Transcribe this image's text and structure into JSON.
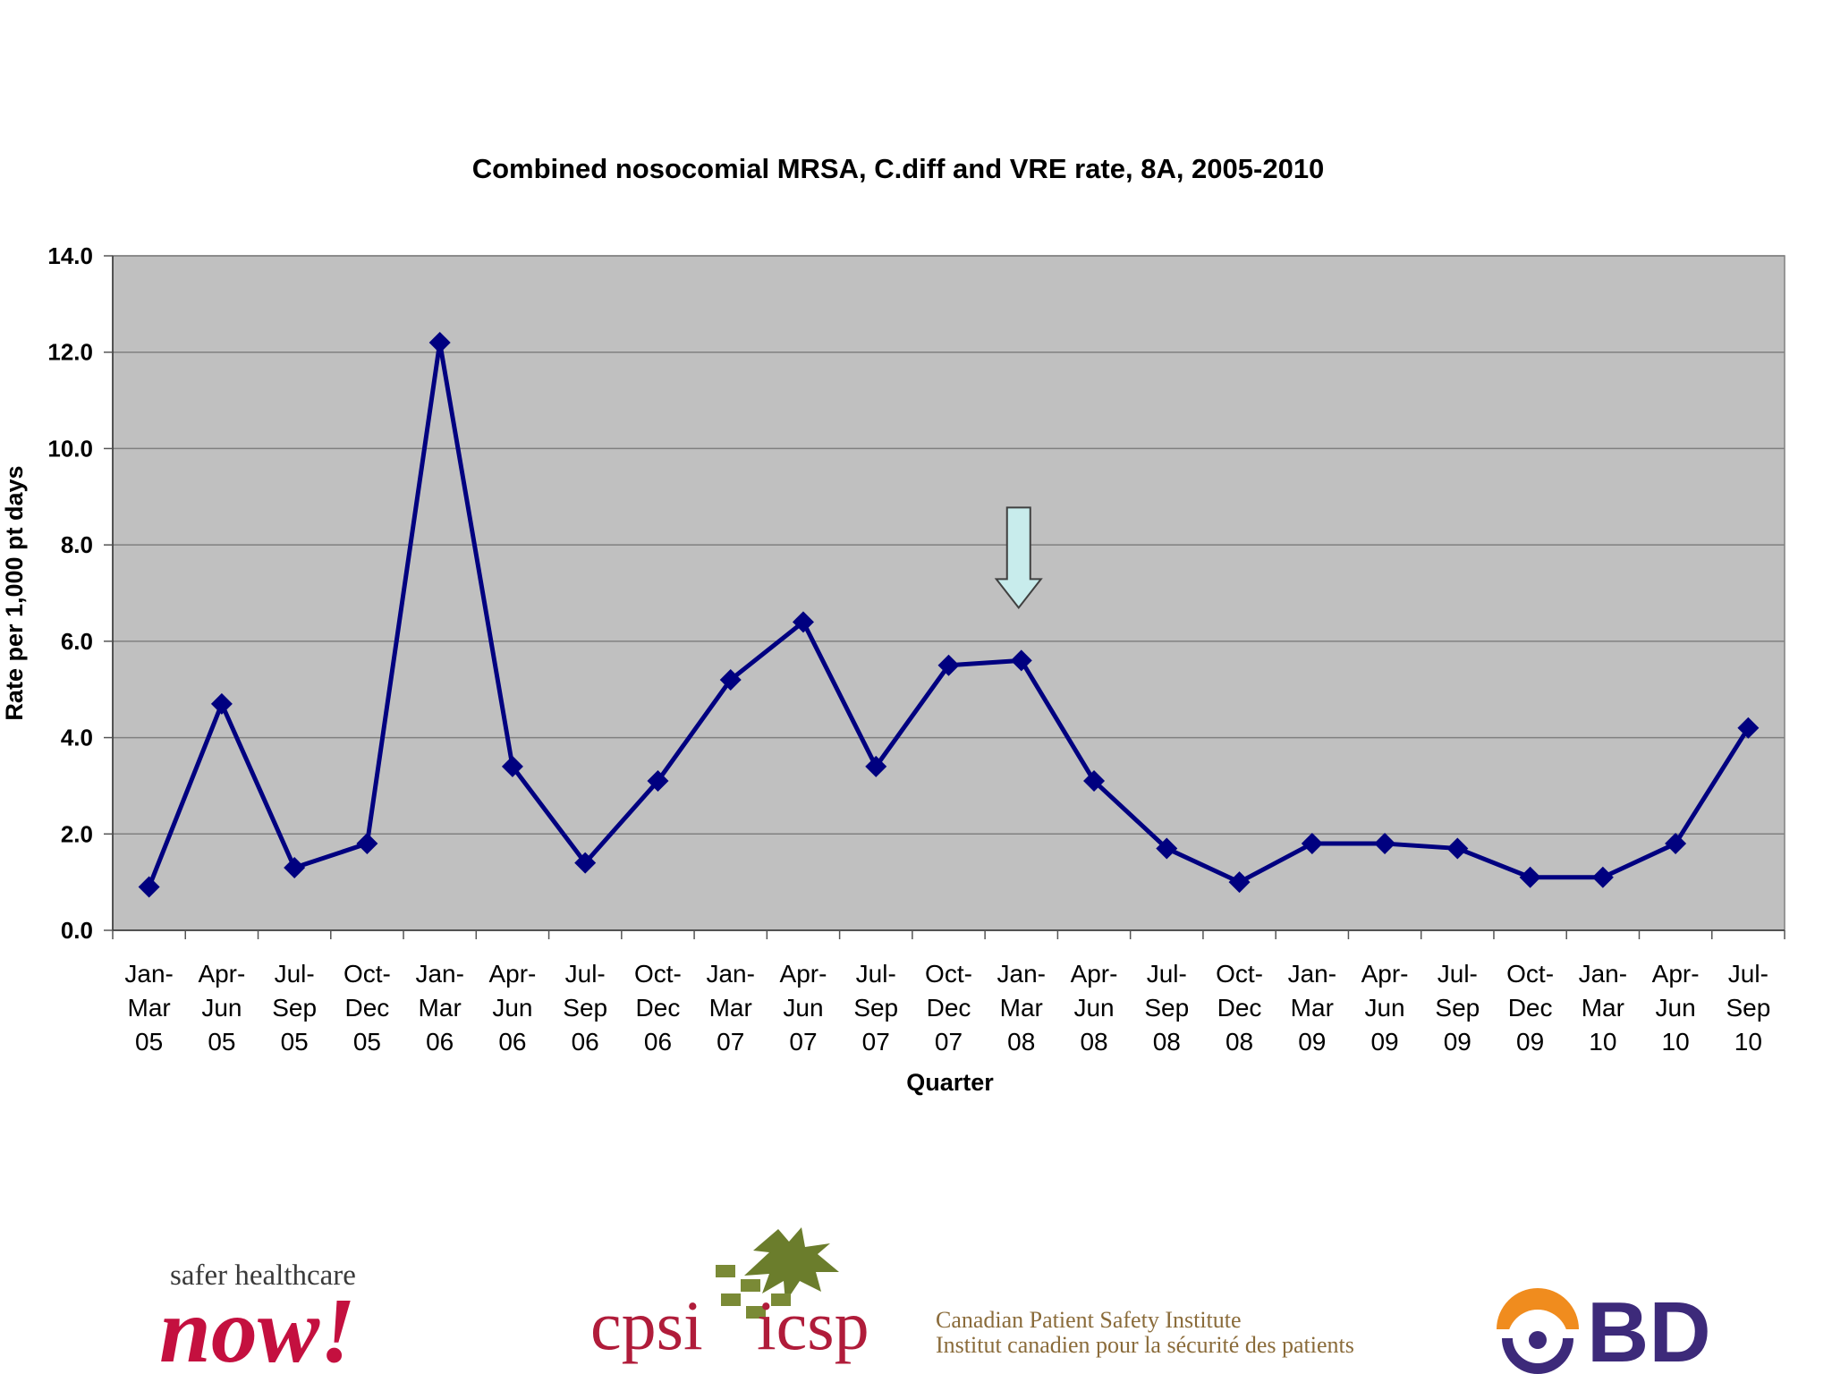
{
  "chart_data": {
    "type": "line",
    "title": "Combined nosocomial MRSA, C.diff and VRE rate, 8A, 2005-2010",
    "xlabel": "Quarter",
    "ylabel": "Rate per 1,000 pt days",
    "ylim": [
      0,
      14
    ],
    "yticks": [
      "0.0",
      "2.0",
      "4.0",
      "6.0",
      "8.0",
      "10.0",
      "12.0",
      "14.0"
    ],
    "grid": true,
    "legend": "none",
    "categories": [
      [
        "Jan-",
        "Mar",
        "05"
      ],
      [
        "Apr-",
        "Jun",
        "05"
      ],
      [
        "Jul-",
        "Sep",
        "05"
      ],
      [
        "Oct-",
        "Dec",
        "05"
      ],
      [
        "Jan-",
        "Mar",
        "06"
      ],
      [
        "Apr-",
        "Jun",
        "06"
      ],
      [
        "Jul-",
        "Sep",
        "06"
      ],
      [
        "Oct-",
        "Dec",
        "06"
      ],
      [
        "Jan-",
        "Mar",
        "07"
      ],
      [
        "Apr-",
        "Jun",
        "07"
      ],
      [
        "Jul-",
        "Sep",
        "07"
      ],
      [
        "Oct-",
        "Dec",
        "07"
      ],
      [
        "Jan-",
        "Mar",
        "08"
      ],
      [
        "Apr-",
        "Jun",
        "08"
      ],
      [
        "Jul-",
        "Sep",
        "08"
      ],
      [
        "Oct-",
        "Dec",
        "08"
      ],
      [
        "Jan-",
        "Mar",
        "09"
      ],
      [
        "Apr-",
        "Jun",
        "09"
      ],
      [
        "Jul-",
        "Sep",
        "09"
      ],
      [
        "Oct-",
        "Dec",
        "09"
      ],
      [
        "Jan-",
        "Mar",
        "10"
      ],
      [
        "Apr-",
        "Jun",
        "10"
      ],
      [
        "Jul-",
        "Sep",
        "10"
      ]
    ],
    "series": [
      {
        "values": [
          0.9,
          4.7,
          1.3,
          1.8,
          12.2,
          3.4,
          1.4,
          3.1,
          5.2,
          6.4,
          3.4,
          5.5,
          5.6,
          3.1,
          1.7,
          1.0,
          1.8,
          1.8,
          1.7,
          1.1,
          1.1,
          1.8,
          4.2
        ],
        "color": "#000080"
      }
    ],
    "annotations": [
      {
        "type": "arrow",
        "points_to_category_index": 12,
        "color": "#c8ecec"
      }
    ],
    "plot_background": "#c0c0c0"
  },
  "logos": {
    "shn_top": "safer healthcare",
    "shn_now": "now!",
    "cpsi_left": "cpsi",
    "cpsi_right": "icsp",
    "cpsi_line1": "Canadian Patient Safety Institute",
    "cpsi_line2": "Institut canadien pour la sécurité des patients",
    "bd": "BD"
  }
}
